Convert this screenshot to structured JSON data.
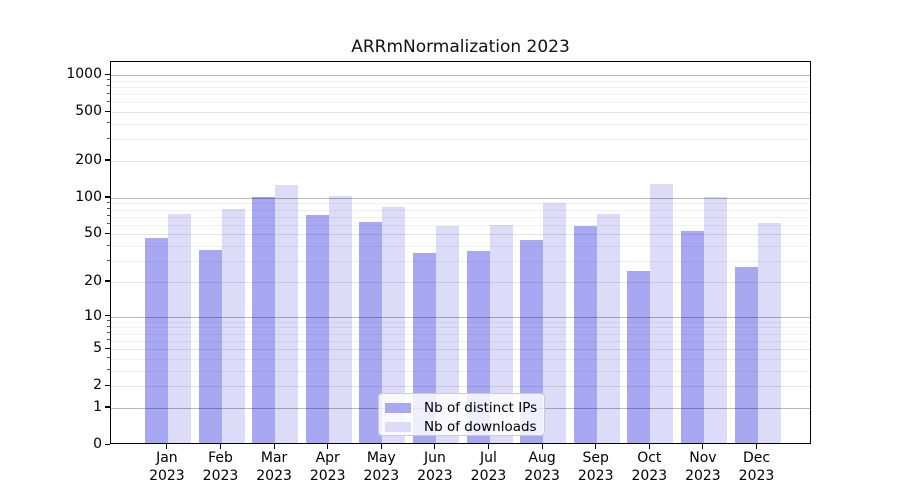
{
  "figure": {
    "title": "ARRmNormalization 2023",
    "background": "#ffffff"
  },
  "chart_data": {
    "type": "bar",
    "title": "ARRmNormalization 2023",
    "xlabel": "",
    "ylabel": "",
    "grid": true,
    "y_scale": "log1p",
    "ylim": [
      0,
      1280
    ],
    "y_ticks": [
      0,
      1,
      2,
      5,
      10,
      20,
      50,
      100,
      200,
      500,
      1000
    ],
    "y_minor_ticks": [
      3,
      4,
      6,
      7,
      8,
      9,
      30,
      40,
      60,
      70,
      80,
      90,
      300,
      400,
      600,
      700,
      800,
      900
    ],
    "categories": [
      "Jan 2023",
      "Feb 2023",
      "Mar 2023",
      "Apr 2023",
      "May 2023",
      "Jun 2023",
      "Jul 2023",
      "Aug 2023",
      "Sep 2023",
      "Oct 2023",
      "Nov 2023",
      "Dec 2023"
    ],
    "series": [
      {
        "name": "Nb of distinct IPs",
        "color": "#a8a8f2",
        "values": [
          45,
          36,
          97,
          70,
          61,
          34,
          35,
          43,
          57,
          24,
          51,
          26
        ]
      },
      {
        "name": "Nb of downloads",
        "color": "#dcdcf8",
        "values": [
          71,
          78,
          122,
          100,
          81,
          57,
          58,
          87,
          71,
          125,
          98,
          60
        ]
      }
    ],
    "legend_position": "lower center"
  },
  "colors": {
    "spine": "#000000",
    "grid_major": "rgba(0,0,0,0.28)",
    "grid_light": "rgba(0,0,0,0.10)",
    "grid_minor": "rgba(0,0,0,0.055)"
  }
}
